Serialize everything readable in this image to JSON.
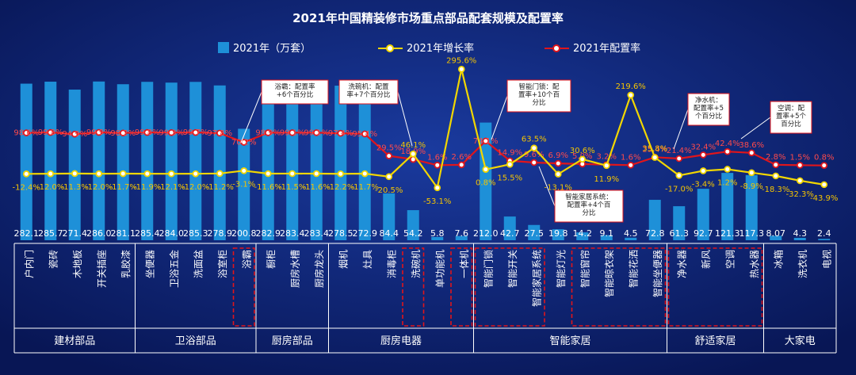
{
  "chart_data": {
    "type": "bar",
    "title": "2021年中国精装修市场重点部品配套规模及配置率",
    "legend": [
      {
        "name": "2021年（万套）",
        "color": "#1e90d8",
        "kind": "bar"
      },
      {
        "name": "2021年增长率",
        "color": "#f2d600",
        "kind": "line"
      },
      {
        "name": "2021年配置率",
        "color": "#e0151b",
        "kind": "line"
      }
    ],
    "categories": [
      "户内门",
      "瓷砖",
      "木地板",
      "开关插座",
      "乳胶漆",
      "坐便器",
      "卫浴五金",
      "洗面盆",
      "浴室柜",
      "浴霸",
      "橱柜",
      "厨房水槽",
      "厨房龙头",
      "烟机",
      "灶具",
      "消毒柜",
      "洗碗机",
      "单功能机",
      "一体机",
      "智能门锁",
      "智能开关",
      "智能家居系统",
      "智能灯光",
      "智能窗帘",
      "智能晾衣架",
      "智能花洒",
      "智能坐便器",
      "净水器",
      "新风",
      "空调",
      "热水器",
      "冰箱",
      "洗衣机",
      "电视"
    ],
    "bar_labels": [
      "282.1",
      "285.7",
      "271.4",
      "286.0",
      "281.1",
      "285.4",
      "284.0",
      "285.3",
      "278.9",
      "200.8",
      "282.9",
      "283.4",
      "283.4",
      "278.5",
      "272.9",
      "84.4",
      "54.2",
      "5.8",
      "7.6",
      "212.0",
      "42.7",
      "27.5",
      "19.8",
      "14.2",
      "9.1",
      "4.5",
      "72.8",
      "61.3",
      "92.7",
      "121.3",
      "117.3",
      "8.07",
      "4.3",
      "2.4"
    ],
    "series": [
      {
        "name": "2021年（万套）",
        "values": [
          282.1,
          285.7,
          271.4,
          286.0,
          281.1,
          285.4,
          284.0,
          285.3,
          278.9,
          200.8,
          282.9,
          283.4,
          283.4,
          278.5,
          272.9,
          84.4,
          54.2,
          5.8,
          7.6,
          212.0,
          42.7,
          27.5,
          19.8,
          14.2,
          9.1,
          4.5,
          72.8,
          61.3,
          92.7,
          121.3,
          117.3,
          8.07,
          4.3,
          2.4
        ]
      },
      {
        "name": "2021年增长率",
        "values": [
          -12.4,
          -12.0,
          -11.3,
          -12.0,
          -11.7,
          -11.9,
          -12.1,
          -12.0,
          -11.2,
          -3.1,
          -11.6,
          -11.5,
          -11.6,
          -12.2,
          -11.7,
          -20.5,
          46.1,
          -53.1,
          295.6,
          0.8,
          15.5,
          63.5,
          -13.1,
          30.6,
          11.9,
          219.6,
          35.8,
          -17.0,
          -3.4,
          1.2,
          -8.9,
          -18.3,
          -32.3,
          -43.9
        ],
        "labels": [
          "-12.4%",
          "-12.0%",
          "-11.3%",
          "-12.0%",
          "-11.7%",
          "-11.9%",
          "-12.1%",
          "-12.0%",
          "-11.2%",
          "-3.1%",
          "-11.6%",
          "-11.5%",
          "-11.6%",
          "-12.2%",
          "-11.7%",
          "-20.5%",
          "46.1%",
          "-53.1%",
          "295.6%",
          "0.8%",
          "15.5%",
          "63.5%",
          "-13.1%",
          "30.6%",
          "11.9%",
          "219.6%",
          "35.8%",
          "-17.0%",
          "-3.4%",
          "1.2%",
          "-8.9%",
          "-18.3%",
          "-32.3%",
          "-43.9%"
        ]
      },
      {
        "name": "2021年配置率",
        "values": [
          98.6,
          99.8,
          94.9,
          99.9,
          98.2,
          99.8,
          99.3,
          99.7,
          97.8,
          70.2,
          98.9,
          99.1,
          99.1,
          97.4,
          95.4,
          29.5,
          18.9,
          1.6,
          2.6,
          74.1,
          14.9,
          9.6,
          6.9,
          5.0,
          3.2,
          1.6,
          25.4,
          21.4,
          32.4,
          42.4,
          38.6,
          2.8,
          1.5,
          0.8
        ],
        "labels": [
          "98.6%",
          "99.8%",
          "94.9%",
          "99.9%",
          "98.2%",
          "99.8%",
          "99.3%",
          "99.7%",
          "97.8%",
          "70.2%",
          "98.9%",
          "99.1%",
          "99.1%",
          "97.4%",
          "95.4%",
          "29.5%",
          "18.9%",
          "1.6%",
          "2.6%",
          "74.1%",
          "14.9%",
          "9.6%",
          "6.9%",
          "5.0%",
          "3.2%",
          "1.6%",
          "25.4%",
          "21.4%",
          "32.4%",
          "42.4%",
          "38.6%",
          "2.8%",
          "1.5%",
          "0.8%"
        ]
      }
    ],
    "groups": [
      {
        "name": "建材部品",
        "count": 5
      },
      {
        "name": "卫浴部品",
        "count": 5
      },
      {
        "name": "厨房部品",
        "count": 3
      },
      {
        "name": "厨房电器",
        "count": 6
      },
      {
        "name": "智能家居",
        "count": 8
      },
      {
        "name": "舒适家居",
        "count": 4
      },
      {
        "name": "大家电",
        "count": 3
      }
    ],
    "callouts": [
      {
        "lines": [
          "浴霸：配置率",
          "+6个百分比"
        ]
      },
      {
        "lines": [
          "洗碗机：配置",
          "率+7个百分比"
        ]
      },
      {
        "lines": [
          "智能门锁：配",
          "置率+10个百",
          "分比"
        ]
      },
      {
        "lines": [
          "智能家居系统：",
          "配置率+4个百",
          "分比"
        ]
      },
      {
        "lines": [
          "净水机：",
          "配置率+5",
          "个百分比"
        ]
      },
      {
        "lines": [
          "空调：配",
          "置率+5个",
          "百分比"
        ]
      }
    ],
    "highlighted": [
      "浴霸",
      "洗碗机",
      "一体机",
      "智能门锁",
      "智能开关",
      "智能家居系统",
      "智能窗帘",
      "智能晾衣架",
      "智能花洒",
      "智能坐便器",
      "净水器",
      "新风",
      "空调",
      "热水器"
    ]
  }
}
